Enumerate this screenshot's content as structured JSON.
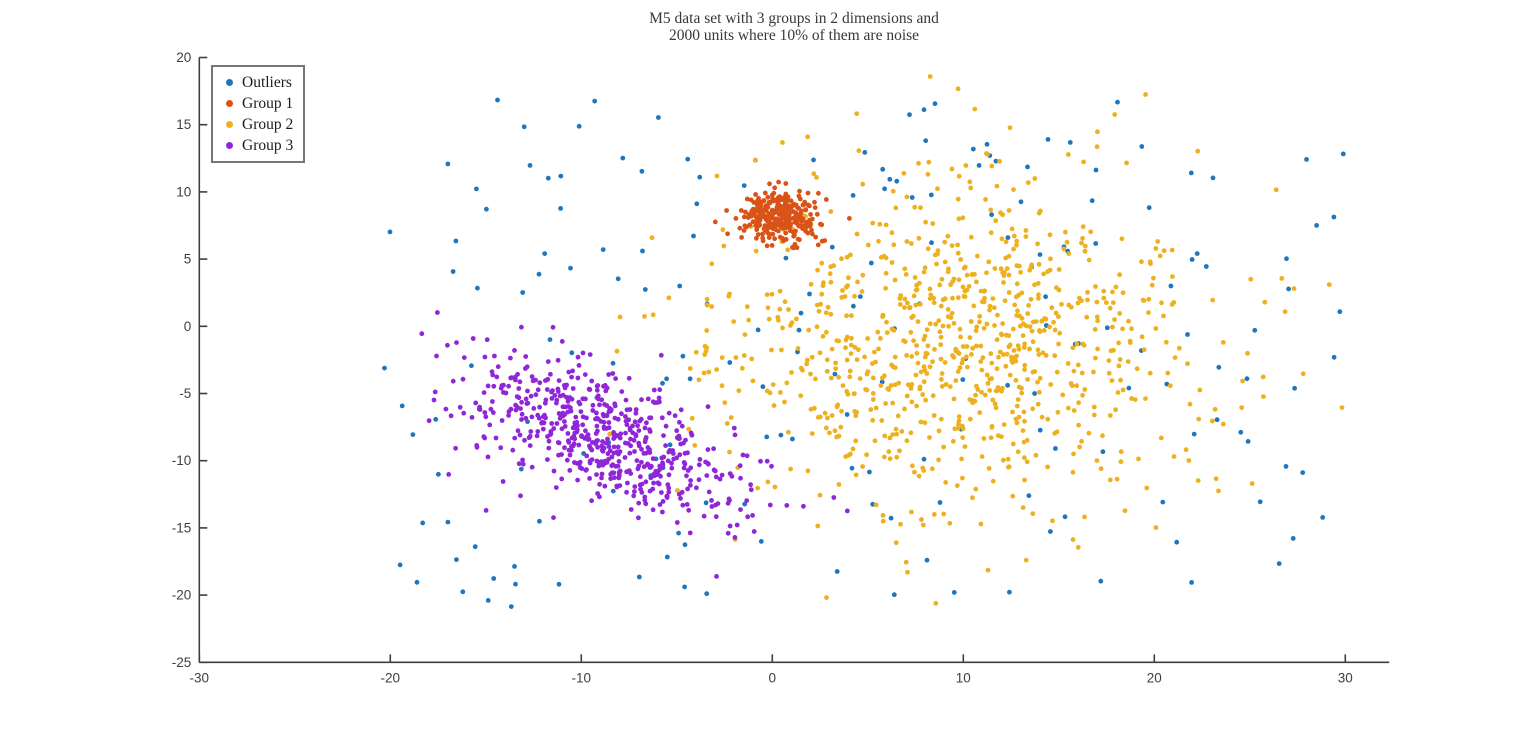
{
  "title": {
    "line1": "M5 data set with 3 groups in 2 dimensions and",
    "line2": "2000 units where 10% of them are noise"
  },
  "chart_data": {
    "type": "scatter",
    "title": "M5 data set with 3 groups in 2 dimensions and 2000 units where 10% of them are noise",
    "xlabel": "",
    "ylabel": "",
    "xlim": [
      -30,
      32.3
    ],
    "ylim": [
      -25,
      20
    ],
    "x_ticks": [
      -30,
      -20,
      -10,
      0,
      10,
      20,
      30
    ],
    "y_ticks": [
      -25,
      -20,
      -15,
      -10,
      -5,
      0,
      5,
      10,
      15,
      20
    ],
    "grid": false,
    "legend_position": "top-left",
    "axis_color": "#3f3f3f",
    "marker": {
      "shape": "circle",
      "radius_px": 2.4
    },
    "total_units": 2000,
    "noise_fraction": 0.1,
    "series": [
      {
        "name": "Outliers",
        "color": "#1E76BE",
        "n": 200,
        "dist": "uniform",
        "x_range": [
          -20.5,
          30.2
        ],
        "y_range": [
          -21,
          17
        ]
      },
      {
        "name": "Group 1",
        "color": "#D95319",
        "n": 300,
        "dist": "gaussian",
        "center": [
          0.4,
          8.1
        ],
        "sd": [
          1.05,
          0.95
        ],
        "angle_deg": 0
      },
      {
        "name": "Group 2",
        "color": "#EDB120",
        "n": 900,
        "dist": "gaussian",
        "center": [
          9.8,
          -1.2
        ],
        "sd": [
          6.3,
          6.3
        ],
        "angle_deg": 0
      },
      {
        "name": "Group 3",
        "color": "#8F27D8",
        "n": 600,
        "dist": "gaussian",
        "center": [
          -8.8,
          -8.3
        ],
        "sd": [
          4.4,
          2.0
        ],
        "angle_deg": -37
      }
    ],
    "draw_order": [
      0,
      2,
      3,
      1
    ],
    "seed": 42
  }
}
